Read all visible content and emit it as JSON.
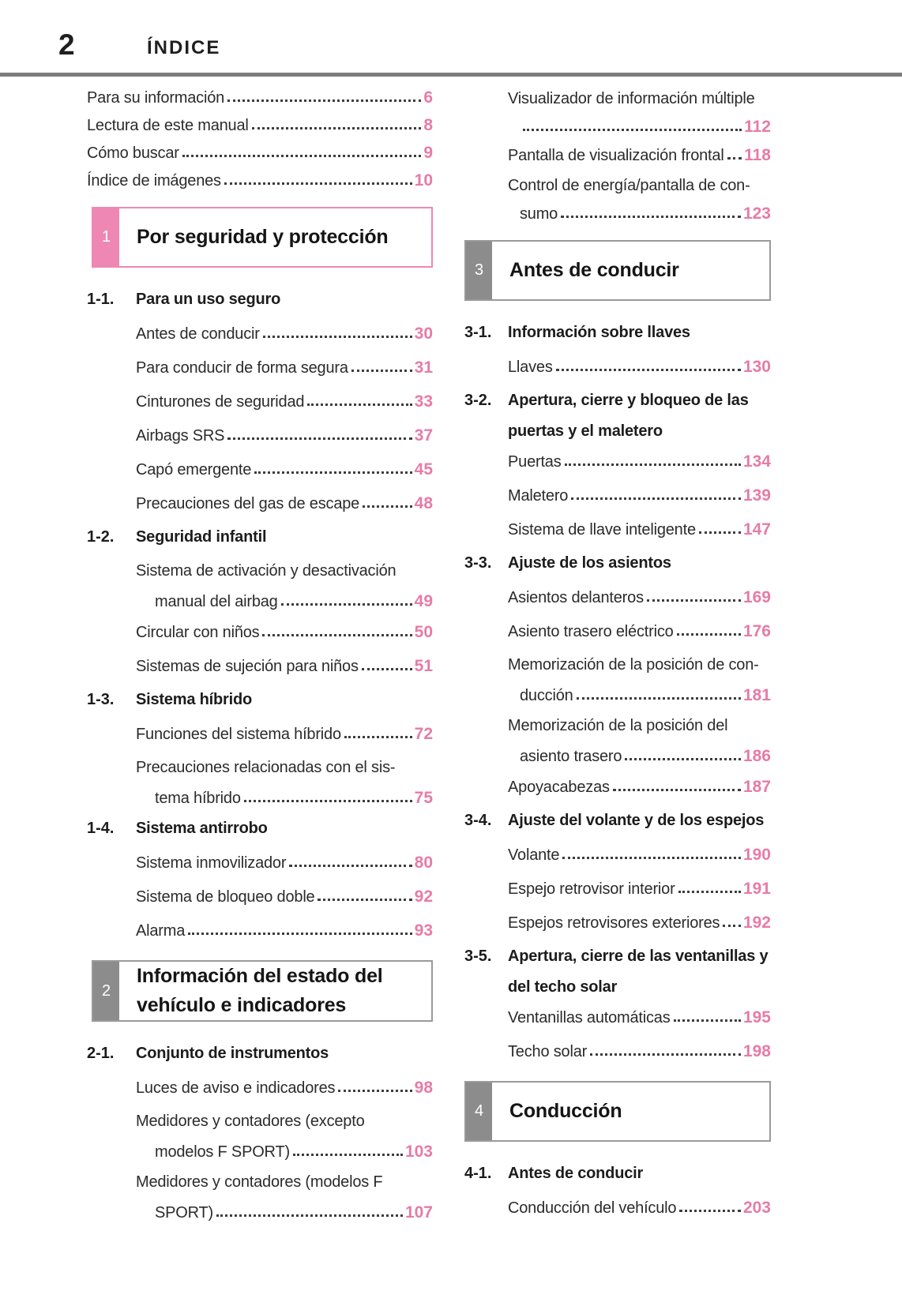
{
  "page": {
    "number": "2",
    "header_title": "ÍNDICE"
  },
  "colors": {
    "accent_pink": "#ee87b3",
    "page_number_pink": "#e77ba7",
    "tab_gray": "#8c8c8c",
    "box_border_gray": "#9a9a9a",
    "header_rule_gray": "#7c7c7c"
  },
  "columns": [
    {
      "side": "left",
      "blocks": [
        {
          "type": "entry",
          "level": "top",
          "lines": [
            "Para su información"
          ],
          "page": "6"
        },
        {
          "type": "entry",
          "level": "top",
          "lines": [
            "Lectura de este manual"
          ],
          "page": "8"
        },
        {
          "type": "entry",
          "level": "top",
          "lines": [
            "Cómo buscar"
          ],
          "page": "9"
        },
        {
          "type": "entry",
          "level": "top",
          "lines": [
            "Índice de imágenes"
          ],
          "page": "10"
        },
        {
          "type": "chapter",
          "number": "1",
          "theme": "pink",
          "title_lines": [
            "Por seguridad y protección"
          ]
        },
        {
          "type": "section",
          "number": "1-1.",
          "title_lines": [
            "Para un uso seguro"
          ]
        },
        {
          "type": "entry",
          "level": "sub",
          "lines": [
            "Antes de conducir"
          ],
          "page": "30"
        },
        {
          "type": "entry",
          "level": "sub",
          "lines": [
            "Para conducir de forma segura"
          ],
          "page": "31"
        },
        {
          "type": "entry",
          "level": "sub",
          "lines": [
            "Cinturones de seguridad"
          ],
          "page": "33"
        },
        {
          "type": "entry",
          "level": "sub",
          "lines": [
            "Airbags SRS"
          ],
          "page": "37"
        },
        {
          "type": "entry",
          "level": "sub",
          "lines": [
            "Capó emergente"
          ],
          "page": "45"
        },
        {
          "type": "entry",
          "level": "sub",
          "lines": [
            "Precauciones del gas de escape"
          ],
          "page": "48"
        },
        {
          "type": "section",
          "number": "1-2.",
          "title_lines": [
            "Seguridad infantil"
          ]
        },
        {
          "type": "entry",
          "level": "sub",
          "lines": [
            "Sistema de activación y desactivación",
            "manual del airbag"
          ],
          "page": "49"
        },
        {
          "type": "entry",
          "level": "sub",
          "lines": [
            "Circular con niños"
          ],
          "page": "50"
        },
        {
          "type": "entry",
          "level": "sub",
          "lines": [
            "Sistemas de sujeción para niños"
          ],
          "page": "51"
        },
        {
          "type": "section",
          "number": "1-3.",
          "title_lines": [
            "Sistema híbrido"
          ]
        },
        {
          "type": "entry",
          "level": "sub",
          "lines": [
            "Funciones del sistema híbrido"
          ],
          "page": "72"
        },
        {
          "type": "entry",
          "level": "sub",
          "lines": [
            "Precauciones relacionadas con el sis-",
            "tema híbrido"
          ],
          "page": "75"
        },
        {
          "type": "section",
          "number": "1-4.",
          "title_lines": [
            "Sistema antirrobo"
          ]
        },
        {
          "type": "entry",
          "level": "sub",
          "lines": [
            "Sistema inmovilizador"
          ],
          "page": "80"
        },
        {
          "type": "entry",
          "level": "sub",
          "lines": [
            "Sistema de bloqueo doble"
          ],
          "page": "92"
        },
        {
          "type": "entry",
          "level": "sub",
          "lines": [
            "Alarma"
          ],
          "page": "93"
        },
        {
          "type": "chapter",
          "number": "2",
          "theme": "gray",
          "title_lines": [
            "Información del estado del",
            "vehículo e indicadores"
          ]
        },
        {
          "type": "section",
          "number": "2-1.",
          "title_lines": [
            "Conjunto de instrumentos"
          ]
        },
        {
          "type": "entry",
          "level": "sub",
          "lines": [
            "Luces de aviso e indicadores"
          ],
          "page": "98"
        },
        {
          "type": "entry",
          "level": "sub",
          "lines": [
            "Medidores y contadores (excepto",
            "modelos F SPORT)"
          ],
          "page": "103"
        },
        {
          "type": "entry",
          "level": "sub",
          "lines": [
            "Medidores y contadores (modelos F",
            "SPORT)"
          ],
          "page": "107"
        }
      ]
    },
    {
      "side": "right",
      "blocks": [
        {
          "type": "entry",
          "level": "top",
          "lines": [
            "Visualizador de información múltiple",
            ""
          ],
          "page": "112"
        },
        {
          "type": "entry",
          "level": "top",
          "lines": [
            "Pantalla de visualización frontal"
          ],
          "page": "118"
        },
        {
          "type": "entry",
          "level": "top",
          "lines": [
            "Control de energía/pantalla de con-",
            "sumo"
          ],
          "page": "123"
        },
        {
          "type": "chapter",
          "number": "3",
          "theme": "gray",
          "title_lines": [
            "Antes de conducir"
          ]
        },
        {
          "type": "section",
          "number": "3-1.",
          "title_lines": [
            "Información sobre llaves"
          ]
        },
        {
          "type": "entry",
          "level": "sub",
          "lines": [
            "Llaves"
          ],
          "page": "130"
        },
        {
          "type": "section",
          "number": "3-2.",
          "title_lines": [
            "Apertura, cierre y bloqueo de las",
            "puertas y el maletero"
          ]
        },
        {
          "type": "entry",
          "level": "sub",
          "lines": [
            "Puertas"
          ],
          "page": "134"
        },
        {
          "type": "entry",
          "level": "sub",
          "lines": [
            "Maletero"
          ],
          "page": "139"
        },
        {
          "type": "entry",
          "level": "sub",
          "lines": [
            "Sistema de llave inteligente"
          ],
          "page": "147"
        },
        {
          "type": "section",
          "number": "3-3.",
          "title_lines": [
            "Ajuste de los asientos"
          ]
        },
        {
          "type": "entry",
          "level": "sub",
          "lines": [
            "Asientos delanteros"
          ],
          "page": "169"
        },
        {
          "type": "entry",
          "level": "sub",
          "lines": [
            "Asiento trasero eléctrico"
          ],
          "page": "176"
        },
        {
          "type": "entry",
          "level": "sub",
          "lines": [
            "Memorización de la posición de con-",
            "ducción"
          ],
          "page": "181"
        },
        {
          "type": "entry",
          "level": "sub",
          "lines": [
            "Memorización de la posición del",
            "asiento trasero"
          ],
          "page": "186"
        },
        {
          "type": "entry",
          "level": "sub",
          "lines": [
            "Apoyacabezas"
          ],
          "page": "187"
        },
        {
          "type": "section",
          "number": "3-4.",
          "title_lines": [
            "Ajuste del volante y de los espejos"
          ]
        },
        {
          "type": "entry",
          "level": "sub",
          "lines": [
            "Volante"
          ],
          "page": "190"
        },
        {
          "type": "entry",
          "level": "sub",
          "lines": [
            "Espejo retrovisor interior"
          ],
          "page": "191"
        },
        {
          "type": "entry",
          "level": "sub",
          "lines": [
            "Espejos retrovisores exteriores"
          ],
          "page": "192"
        },
        {
          "type": "section",
          "number": "3-5.",
          "title_lines": [
            "Apertura, cierre de las ventanillas y",
            "del techo solar"
          ]
        },
        {
          "type": "entry",
          "level": "sub",
          "lines": [
            "Ventanillas automáticas"
          ],
          "page": "195"
        },
        {
          "type": "entry",
          "level": "sub",
          "lines": [
            "Techo solar"
          ],
          "page": "198"
        },
        {
          "type": "chapter",
          "number": "4",
          "theme": "gray",
          "title_lines": [
            "Conducción"
          ]
        },
        {
          "type": "section",
          "number": "4-1.",
          "title_lines": [
            "Antes de conducir"
          ]
        },
        {
          "type": "entry",
          "level": "sub",
          "lines": [
            "Conducción del vehículo"
          ],
          "page": "203"
        }
      ]
    }
  ]
}
